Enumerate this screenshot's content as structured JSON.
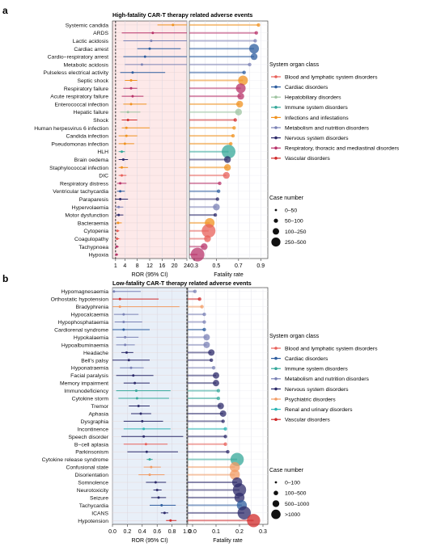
{
  "colors": {
    "Blood and lymphatic system disorders": "#e8605a",
    "Cardiac disorders": "#2d5d9f",
    "Hepatobiliary disorders": "#9fc4a2",
    "Immune system disorders": "#35a89a",
    "Infections and infestations": "#f0921f",
    "Metabolism and nutrition disorders": "#7b82b5",
    "Nervous system disorders": "#2c2a6a",
    "Respiratory, thoracic and mediastinal disorders": "#b8336a",
    "Vascular disorders": "#d12b2b",
    "Psychiatric disorders": "#f29b63",
    "Renal and urinary disorders": "#2bb5b5"
  },
  "chart_data": [
    {
      "type": "scatter",
      "panel_label": "a",
      "title": "High-fatality CAR-T therapy related adverse events",
      "xlabel": "ROR (95% CI)",
      "xticks": [
        "1",
        "4",
        "8",
        "12",
        "16",
        "20",
        "24"
      ],
      "xlim": [
        0,
        24
      ],
      "reference_line": 1,
      "fatality_xlabel": "Fatality rate",
      "fatality_xticks": [
        "0.3",
        "0.5",
        "0.7",
        "0.9"
      ],
      "fatality_xlim": [
        0.3,
        0.92
      ],
      "legend_title": "System organ class",
      "legend_items": [
        "Blood and lymphatic system disorders",
        "Cardiac disorders",
        "Hepatobiliary disorders",
        "Immune system disorders",
        "Infections and infestations",
        "Metabolism and nutrition disorders",
        "Nervous system disorders",
        "Respiratory, thoracic and mediastinal disorders",
        "Vascular disorders"
      ],
      "size_title": "Case number",
      "size_items": [
        "0–50",
        "50–100",
        "100–250",
        "250–500"
      ],
      "rows": [
        {
          "label": "Systemic candida",
          "soc": "Infections and infestations",
          "ror": 19.5,
          "lo": 14.5,
          "hi": 24.0,
          "rate": 0.88,
          "size": 0
        },
        {
          "label": "ARDS",
          "soc": "Respiratory, thoracic and mediastinal disorders",
          "ror": 13.0,
          "lo": 3.0,
          "hi": 24.0,
          "rate": 0.86,
          "size": 0
        },
        {
          "label": "Lactic acidosis",
          "soc": "Metabolism and nutrition disorders",
          "ror": 12.5,
          "lo": 3.5,
          "hi": 24.0,
          "rate": 0.85,
          "size": 0
        },
        {
          "label": "Cardiac arrest",
          "soc": "Cardiac disorders",
          "ror": 12.0,
          "lo": 8.0,
          "hi": 22.0,
          "rate": 0.84,
          "size": 2
        },
        {
          "label": "Cardio−respiratory arrest",
          "soc": "Cardiac disorders",
          "ror": 10.5,
          "lo": 3.5,
          "hi": 24.0,
          "rate": 0.84,
          "size": 1
        },
        {
          "label": "Metabolic acidosis",
          "soc": "Metabolism and nutrition disorders",
          "ror": 9.5,
          "lo": 4.0,
          "hi": 24.0,
          "rate": 0.8,
          "size": 0
        },
        {
          "label": "Pulseless electrical activity",
          "soc": "Cardiac disorders",
          "ror": 6.5,
          "lo": 2.5,
          "hi": 17.0,
          "rate": 0.75,
          "size": 0
        },
        {
          "label": "Septic shock",
          "soc": "Infections and infestations",
          "ror": 6.0,
          "lo": 4.0,
          "hi": 8.0,
          "rate": 0.74,
          "size": 2
        },
        {
          "label": "Respiratory failure",
          "soc": "Respiratory, thoracic and mediastinal disorders",
          "ror": 6.0,
          "lo": 3.5,
          "hi": 8.0,
          "rate": 0.72,
          "size": 2
        },
        {
          "label": "Acute respiratory failure",
          "soc": "Respiratory, thoracic and mediastinal disorders",
          "ror": 6.5,
          "lo": 3.0,
          "hi": 10.0,
          "rate": 0.72,
          "size": 1
        },
        {
          "label": "Enterococcal infection",
          "soc": "Infections and infestations",
          "ror": 6.0,
          "lo": 3.5,
          "hi": 11.0,
          "rate": 0.71,
          "size": 1
        },
        {
          "label": "Hepatic failure",
          "soc": "Hepatobiliary disorders",
          "ror": 5.0,
          "lo": 2.5,
          "hi": 9.0,
          "rate": 0.7,
          "size": 1
        },
        {
          "label": "Shock",
          "soc": "Vascular disorders",
          "ror": 5.0,
          "lo": 3.0,
          "hi": 8.0,
          "rate": 0.67,
          "size": 0
        },
        {
          "label": "Human herpesvirus 6 infection",
          "soc": "Infections and infestations",
          "ror": 4.5,
          "lo": 3.0,
          "hi": 12.0,
          "rate": 0.66,
          "size": 0
        },
        {
          "label": "Candida infection",
          "soc": "Infections and infestations",
          "ror": 4.5,
          "lo": 2.0,
          "hi": 8.0,
          "rate": 0.65,
          "size": 0
        },
        {
          "label": "Pseudomonas infection",
          "soc": "Infections and infestations",
          "ror": 4.0,
          "lo": 2.0,
          "hi": 7.0,
          "rate": 0.63,
          "size": 0
        },
        {
          "label": "HLH",
          "soc": "Immune system disorders",
          "ror": 3.0,
          "lo": 2.0,
          "hi": 4.0,
          "rate": 0.61,
          "size": 3
        },
        {
          "label": "Brain oedema",
          "soc": "Nervous system disorders",
          "ror": 3.5,
          "lo": 2.0,
          "hi": 5.0,
          "rate": 0.6,
          "size": 1
        },
        {
          "label": "Staphylococcal infection",
          "soc": "Infections and infestations",
          "ror": 3.0,
          "lo": 2.0,
          "hi": 5.0,
          "rate": 0.6,
          "size": 1
        },
        {
          "label": "DIC",
          "soc": "Blood and lymphatic system disorders",
          "ror": 3.0,
          "lo": 2.0,
          "hi": 4.5,
          "rate": 0.59,
          "size": 1
        },
        {
          "label": "Respiratory distress",
          "soc": "Respiratory, thoracic and mediastinal disorders",
          "ror": 2.5,
          "lo": 1.5,
          "hi": 4.5,
          "rate": 0.53,
          "size": 0
        },
        {
          "label": "Ventricular tachycardia",
          "soc": "Cardiac disorders",
          "ror": 2.5,
          "lo": 1.5,
          "hi": 4.0,
          "rate": 0.52,
          "size": 0
        },
        {
          "label": "Paraparesis",
          "soc": "Nervous system disorders",
          "ror": 2.5,
          "lo": 1.0,
          "hi": 5.0,
          "rate": 0.51,
          "size": 0
        },
        {
          "label": "Hypervolaemia",
          "soc": "Metabolism and nutrition disorders",
          "ror": 2.0,
          "lo": 1.0,
          "hi": 3.5,
          "rate": 0.5,
          "size": 1
        },
        {
          "label": "Motor dysfunction",
          "soc": "Nervous system disorders",
          "ror": 2.0,
          "lo": 1.0,
          "hi": 3.5,
          "rate": 0.49,
          "size": 0
        },
        {
          "label": "Bacteraemia",
          "soc": "Infections and infestations",
          "ror": 1.8,
          "lo": 1.2,
          "hi": 3.0,
          "rate": 0.44,
          "size": 2
        },
        {
          "label": "Cytopenia",
          "soc": "Blood and lymphatic system disorders",
          "ror": 1.6,
          "lo": 1.2,
          "hi": 2.2,
          "rate": 0.43,
          "size": 3
        },
        {
          "label": "Coagulopathy",
          "soc": "Blood and lymphatic system disorders",
          "ror": 1.5,
          "lo": 1.0,
          "hi": 2.2,
          "rate": 0.42,
          "size": 1
        },
        {
          "label": "Tachypnoea",
          "soc": "Respiratory, thoracic and mediastinal disorders",
          "ror": 1.4,
          "lo": 1.0,
          "hi": 2.0,
          "rate": 0.39,
          "size": 1
        },
        {
          "label": "Hypoxia",
          "soc": "Respiratory, thoracic and mediastinal disorders",
          "ror": 1.3,
          "lo": 1.0,
          "hi": 1.8,
          "rate": 0.33,
          "size": 3
        }
      ]
    },
    {
      "type": "scatter",
      "panel_label": "b",
      "title": "Low-fatality CAR-T therapy related adverse events",
      "xlabel": "ROR (95% CI)",
      "xticks": [
        "0.0",
        "0.2",
        "0.4",
        "0.6",
        "0.8",
        "1.0"
      ],
      "xlim": [
        0,
        1.0
      ],
      "reference_line": 1,
      "fatality_xlabel": "Fatality rate",
      "fatality_xticks": [
        "0.0",
        "0.1",
        "0.2",
        "0.3"
      ],
      "fatality_xlim": [
        0,
        0.3
      ],
      "legend_title": "System organ class",
      "legend_items": [
        "Blood and lymphatic system disorders",
        "Cardiac disorders",
        "Immune system disorders",
        "Metabolism and nutrition disorders",
        "Nervous system disorders",
        "Psychiatric disorders",
        "Renal and urinary disorders",
        "Vascular disorders"
      ],
      "size_title": "Case number",
      "size_items": [
        "0–100",
        "100–500",
        "500–1000",
        ">1000"
      ],
      "rows": [
        {
          "label": "Hypomagnesaemia",
          "soc": "Metabolism and nutrition disorders",
          "ror": 0.02,
          "lo": 0.0,
          "hi": 0.38,
          "rate": 0.01,
          "size": 0
        },
        {
          "label": "Orthostatic hypotension",
          "soc": "Vascular disorders",
          "ror": 0.1,
          "lo": 0.0,
          "hi": 0.62,
          "rate": 0.03,
          "size": 0
        },
        {
          "label": "Bradyphrenia",
          "soc": "Psychiatric disorders",
          "ror": 0.1,
          "lo": 0.0,
          "hi": 0.9,
          "rate": 0.04,
          "size": 0
        },
        {
          "label": "Hypocalcaemia",
          "soc": "Metabolism and nutrition disorders",
          "ror": 0.15,
          "lo": 0.02,
          "hi": 0.35,
          "rate": 0.05,
          "size": 0
        },
        {
          "label": "Hypophosphataemia",
          "soc": "Metabolism and nutrition disorders",
          "ror": 0.15,
          "lo": 0.03,
          "hi": 0.4,
          "rate": 0.05,
          "size": 0
        },
        {
          "label": "Cardiorenal syndrome",
          "soc": "Cardiac disorders",
          "ror": 0.15,
          "lo": 0.0,
          "hi": 0.5,
          "rate": 0.05,
          "size": 0
        },
        {
          "label": "Hypokalaemia",
          "soc": "Metabolism and nutrition disorders",
          "ror": 0.17,
          "lo": 0.05,
          "hi": 0.35,
          "rate": 0.06,
          "size": 1
        },
        {
          "label": "Hypoalbuminaemia",
          "soc": "Metabolism and nutrition disorders",
          "ror": 0.17,
          "lo": 0.05,
          "hi": 0.3,
          "rate": 0.06,
          "size": 1
        },
        {
          "label": "Headache",
          "soc": "Nervous system disorders",
          "ror": 0.19,
          "lo": 0.12,
          "hi": 0.28,
          "rate": 0.08,
          "size": 1
        },
        {
          "label": "Bell's palsy",
          "soc": "Nervous system disorders",
          "ror": 0.22,
          "lo": 0.0,
          "hi": 0.5,
          "rate": 0.08,
          "size": 0
        },
        {
          "label": "Hyponatraemia",
          "soc": "Metabolism and nutrition disorders",
          "ror": 0.25,
          "lo": 0.1,
          "hi": 0.42,
          "rate": 0.09,
          "size": 0
        },
        {
          "label": "Facial paralysis",
          "soc": "Nervous system disorders",
          "ror": 0.28,
          "lo": 0.05,
          "hi": 0.55,
          "rate": 0.1,
          "size": 1
        },
        {
          "label": "Memory impairment",
          "soc": "Nervous system disorders",
          "ror": 0.3,
          "lo": 0.15,
          "hi": 0.5,
          "rate": 0.1,
          "size": 1
        },
        {
          "label": "Immunodeficiency",
          "soc": "Immune system disorders",
          "ror": 0.32,
          "lo": 0.05,
          "hi": 0.78,
          "rate": 0.11,
          "size": 0
        },
        {
          "label": "Cytokine storm",
          "soc": "Immune system disorders",
          "ror": 0.33,
          "lo": 0.08,
          "hi": 0.76,
          "rate": 0.11,
          "size": 0
        },
        {
          "label": "Tremor",
          "soc": "Nervous system disorders",
          "ror": 0.35,
          "lo": 0.22,
          "hi": 0.5,
          "rate": 0.12,
          "size": 1
        },
        {
          "label": "Aphasia",
          "soc": "Nervous system disorders",
          "ror": 0.38,
          "lo": 0.25,
          "hi": 0.52,
          "rate": 0.13,
          "size": 1
        },
        {
          "label": "Dysgraphia",
          "soc": "Nervous system disorders",
          "ror": 0.4,
          "lo": 0.15,
          "hi": 0.68,
          "rate": 0.13,
          "size": 0
        },
        {
          "label": "Incontinence",
          "soc": "Renal and urinary disorders",
          "ror": 0.42,
          "lo": 0.15,
          "hi": 0.78,
          "rate": 0.14,
          "size": 0
        },
        {
          "label": "Speech disorder",
          "soc": "Nervous system disorders",
          "ror": 0.42,
          "lo": 0.12,
          "hi": 0.95,
          "rate": 0.14,
          "size": 0
        },
        {
          "label": "B−cell aplasia",
          "soc": "Blood and lymphatic system disorders",
          "ror": 0.45,
          "lo": 0.15,
          "hi": 0.74,
          "rate": 0.14,
          "size": 0
        },
        {
          "label": "Parkinsonism",
          "soc": "Nervous system disorders",
          "ror": 0.46,
          "lo": 0.2,
          "hi": 0.88,
          "rate": 0.15,
          "size": 0
        },
        {
          "label": "Cytokine release syndrome",
          "soc": "Immune system disorders",
          "ror": 0.5,
          "lo": 0.46,
          "hi": 0.54,
          "rate": 0.19,
          "size": 3
        },
        {
          "label": "Confusional state",
          "soc": "Psychiatric disorders",
          "ror": 0.52,
          "lo": 0.42,
          "hi": 0.65,
          "rate": 0.18,
          "size": 2
        },
        {
          "label": "Disorientation",
          "soc": "Psychiatric disorders",
          "ror": 0.5,
          "lo": 0.35,
          "hi": 0.7,
          "rate": 0.18,
          "size": 2
        },
        {
          "label": "Somnolence",
          "soc": "Nervous system disorders",
          "ror": 0.58,
          "lo": 0.45,
          "hi": 0.72,
          "rate": 0.19,
          "size": 2
        },
        {
          "label": "Neurotoxicity",
          "soc": "Nervous system disorders",
          "ror": 0.6,
          "lo": 0.55,
          "hi": 0.66,
          "rate": 0.2,
          "size": 3
        },
        {
          "label": "Seizure",
          "soc": "Nervous system disorders",
          "ror": 0.62,
          "lo": 0.52,
          "hi": 0.72,
          "rate": 0.2,
          "size": 2
        },
        {
          "label": "Tachycardia",
          "soc": "Cardiac disorders",
          "ror": 0.66,
          "lo": 0.5,
          "hi": 0.85,
          "rate": 0.21,
          "size": 2
        },
        {
          "label": "ICANS",
          "soc": "Nervous system disorders",
          "ror": 0.7,
          "lo": 0.65,
          "hi": 0.75,
          "rate": 0.22,
          "size": 3
        },
        {
          "label": "Hypotension",
          "soc": "Vascular disorders",
          "ror": 0.78,
          "lo": 0.72,
          "hi": 0.86,
          "rate": 0.26,
          "size": 3
        }
      ]
    }
  ]
}
